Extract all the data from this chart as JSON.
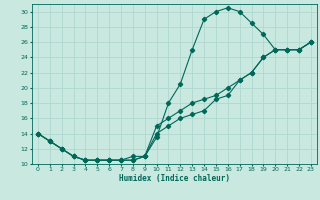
{
  "title": "",
  "xlabel": "Humidex (Indice chaleur)",
  "bg_color": "#c8e8e0",
  "grid_color": "#b0d8d0",
  "line_color": "#006858",
  "xlim": [
    -0.5,
    23.5
  ],
  "ylim": [
    10,
    31
  ],
  "xticks": [
    0,
    1,
    2,
    3,
    4,
    5,
    6,
    7,
    8,
    9,
    10,
    11,
    12,
    13,
    14,
    15,
    16,
    17,
    18,
    19,
    20,
    21,
    22,
    23
  ],
  "yticks": [
    10,
    12,
    14,
    16,
    18,
    20,
    22,
    24,
    26,
    28,
    30
  ],
  "curve1_x": [
    0,
    1,
    2,
    3,
    4,
    5,
    6,
    7,
    8,
    9,
    10,
    11,
    12,
    13,
    14,
    15,
    16,
    17,
    18,
    19,
    20,
    21,
    22,
    23
  ],
  "curve1_y": [
    14,
    13,
    12,
    11,
    10.5,
    10.5,
    10.5,
    10.5,
    10.5,
    11,
    13.5,
    18,
    20.5,
    25,
    29,
    30,
    30.5,
    30,
    28.5,
    27,
    25,
    25,
    25,
    26
  ],
  "curve2_x": [
    0,
    1,
    2,
    3,
    4,
    5,
    6,
    7,
    8,
    9,
    10,
    11,
    12,
    13,
    14,
    15,
    16,
    17,
    18,
    19,
    20,
    21,
    22,
    23
  ],
  "curve2_y": [
    14,
    13,
    12,
    11,
    10.5,
    10.5,
    10.5,
    10.5,
    10.5,
    11,
    14,
    15,
    16,
    16.5,
    17,
    18.5,
    19,
    21,
    22,
    24,
    25,
    25,
    25,
    26
  ],
  "curve3_x": [
    0,
    1,
    2,
    3,
    4,
    5,
    6,
    7,
    8,
    9,
    10,
    11,
    12,
    13,
    14,
    15,
    16,
    17,
    18,
    19,
    20,
    21,
    22,
    23
  ],
  "curve3_y": [
    14,
    13,
    12,
    11,
    10.5,
    10.5,
    10.5,
    10.5,
    11,
    11,
    15,
    16,
    17,
    18,
    18.5,
    19,
    20,
    21,
    22,
    24,
    25,
    25,
    25,
    26
  ],
  "tick_labelsize": 4.5,
  "xlabel_fontsize": 5.5,
  "lw": 0.8,
  "marker_size": 2.2
}
